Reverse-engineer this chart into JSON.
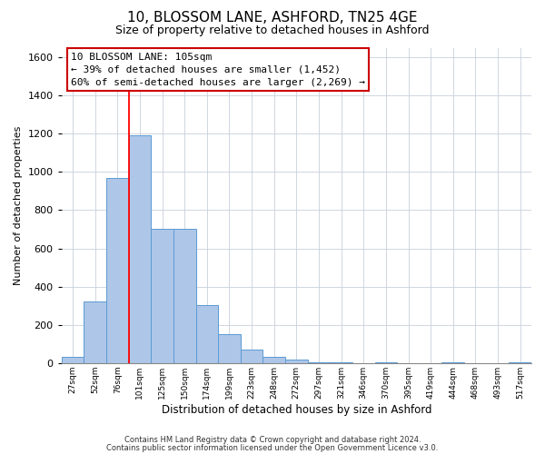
{
  "title": "10, BLOSSOM LANE, ASHFORD, TN25 4GE",
  "subtitle": "Size of property relative to detached houses in Ashford",
  "xlabel": "Distribution of detached houses by size in Ashford",
  "ylabel": "Number of detached properties",
  "bar_values": [
    30,
    320,
    970,
    1190,
    700,
    700,
    305,
    150,
    70,
    30,
    20,
    5,
    5,
    0,
    5,
    0,
    0,
    5,
    0,
    0,
    5
  ],
  "bin_labels": [
    "27sqm",
    "52sqm",
    "76sqm",
    "101sqm",
    "125sqm",
    "150sqm",
    "174sqm",
    "199sqm",
    "223sqm",
    "248sqm",
    "272sqm",
    "297sqm",
    "321sqm",
    "346sqm",
    "370sqm",
    "395sqm",
    "419sqm",
    "444sqm",
    "468sqm",
    "493sqm",
    "517sqm"
  ],
  "bar_color": "#aec6e8",
  "bar_edge_color": "#5b9bd5",
  "ylim": [
    0,
    1650
  ],
  "yticks": [
    0,
    200,
    400,
    600,
    800,
    1000,
    1200,
    1400,
    1600
  ],
  "vline_x": 3,
  "annotation_title": "10 BLOSSOM LANE: 105sqm",
  "annotation_line1": "← 39% of detached houses are smaller (1,452)",
  "annotation_line2": "60% of semi-detached houses are larger (2,269) →",
  "annotation_box_color": "#ffffff",
  "annotation_box_edge_color": "#cc0000",
  "footnote1": "Contains HM Land Registry data © Crown copyright and database right 2024.",
  "footnote2": "Contains public sector information licensed under the Open Government Licence v3.0.",
  "background_color": "#ffffff",
  "grid_color": "#c8d0dc"
}
